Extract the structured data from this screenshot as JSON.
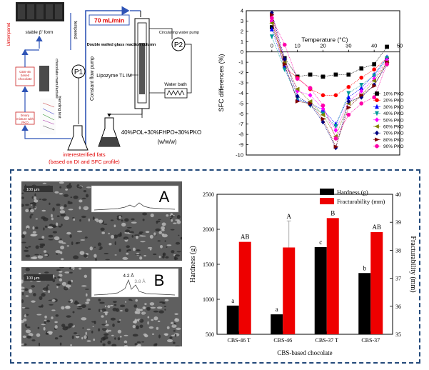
{
  "process": {
    "flow_rate": "70 mL/min",
    "tempered": "tempered",
    "untempered": "Untempered",
    "stable_form": "stable β’ form",
    "cbs_box": "CBS-46 based chocolate",
    "binary_box": "binary mixture with PKO",
    "chocolate_manufacture": "chocolate manufacture",
    "blending_test": "blending test",
    "p1": "P1",
    "p2": "P2",
    "constant_flow_pump": "Constant flow pump",
    "circulating_pump": "Circulating water pump",
    "column_label": "Double walled glass reaction column",
    "enzyme": "Lipozyme TL IM",
    "water_bath": "Water bath",
    "substrate": "40%POL+30%FHPO+30%PKO",
    "substrate_unit": "(w/w/w)",
    "product_line1": "interesterified fats",
    "product_line2": "(based on DI and SFC profile)"
  },
  "micrographs": [
    {
      "label": "A",
      "scale": "100 μm",
      "peak1": "",
      "peak2": ""
    },
    {
      "label": "B",
      "scale": "100 μm",
      "peak1": "4.2 Å",
      "peak2": "3.8 Å"
    }
  ],
  "chart_data": [
    {
      "type": "line",
      "title": "",
      "xlabel": "Temperature (°C)",
      "ylabel": "SFC differences (%)",
      "xlim": [
        -10,
        50
      ],
      "ylim": [
        -10,
        4
      ],
      "xticks": [
        0,
        10,
        20,
        30,
        40,
        50
      ],
      "yticks": [
        -10,
        -9,
        -8,
        -7,
        -6,
        -5,
        -4,
        -3,
        -2,
        -1,
        0,
        1,
        2,
        3,
        4
      ],
      "x": [
        0,
        5,
        10,
        15,
        20,
        25,
        30,
        35,
        40,
        45
      ],
      "legend_position": "right",
      "series": [
        {
          "name": "10% PKO",
          "color": "#000000",
          "marker": "square",
          "values": [
            2.4,
            -0.6,
            -2.4,
            -2.2,
            -2.4,
            -2.2,
            -2.2,
            -1.6,
            -1.2,
            0.5
          ]
        },
        {
          "name": "20% PKO",
          "color": "#ff0000",
          "marker": "circle",
          "values": [
            3.0,
            -1.5,
            -2.5,
            -3.6,
            -4.2,
            -4.2,
            -3.4,
            -2.5,
            -1.7,
            -0.6
          ]
        },
        {
          "name": "30% PKO",
          "color": "#0000ff",
          "marker": "triangle",
          "values": [
            2.2,
            -1.4,
            -4.6,
            -5.0,
            -5.6,
            -7.0,
            -4.4,
            -3.5,
            -2.2,
            -0.5
          ]
        },
        {
          "name": "40% PKO",
          "color": "#009999",
          "marker": "tri-down",
          "values": [
            1.5,
            -1.7,
            -4.5,
            -5.2,
            -6.0,
            -7.2,
            -4.0,
            -3.2,
            -2.3,
            -0.6
          ]
        },
        {
          "name": "50% PKO",
          "color": "#ff00ff",
          "marker": "diamond",
          "values": [
            3.0,
            -0.7,
            -3.8,
            -4.2,
            -5.5,
            -7.6,
            -4.8,
            -3.8,
            -2.6,
            -0.8
          ]
        },
        {
          "name": "60% PKO",
          "color": "#808000",
          "marker": "tri-left",
          "values": [
            2.8,
            -1.0,
            -3.6,
            -4.8,
            -6.1,
            -8.2,
            -5.0,
            -4.2,
            -2.8,
            -1.0
          ]
        },
        {
          "name": "70% PKO",
          "color": "#000080",
          "marker": "diamond",
          "values": [
            3.8,
            -0.7,
            -4.3,
            -5.1,
            -6.8,
            -9.3,
            -4.8,
            -4.4,
            -3.2,
            -1.2
          ]
        },
        {
          "name": "80% PKO",
          "color": "#800000",
          "marker": "tri-right",
          "values": [
            3.6,
            -1.2,
            -4.8,
            -5.0,
            -6.5,
            -9.2,
            -5.4,
            -4.2,
            -3.3,
            -1.0
          ]
        },
        {
          "name": "90% PKO",
          "color": "#ff00aa",
          "marker": "circle",
          "values": [
            3.3,
            0.7,
            -2.6,
            -3.5,
            -5.2,
            -8.4,
            -6.1,
            -5.0,
            -4.4,
            -1.2
          ]
        }
      ]
    },
    {
      "type": "bar",
      "title": "",
      "xlabel": "CBS-based chocolate",
      "ylabel": "Hardness (g)",
      "y2label": "Fracturability (mm)",
      "categories": [
        "CBS-46 T",
        "CBS-46",
        "CBS-37 T",
        "CBS-37"
      ],
      "ylim": [
        500,
        2500
      ],
      "y2lim": [
        35,
        40
      ],
      "yticks": [
        500,
        1000,
        1500,
        2000,
        2500
      ],
      "y2ticks": [
        35,
        36,
        37,
        38,
        39,
        40
      ],
      "legend_position": "top",
      "series": [
        {
          "name": "Hardness (g)",
          "axis": "left",
          "color": "#000000",
          "values": [
            910,
            785,
            1745,
            1375
          ],
          "errors": [
            0,
            0,
            0,
            0
          ],
          "labels": [
            "a",
            "a",
            "c",
            "b"
          ]
        },
        {
          "name": "Fracturability (mm)",
          "axis": "right",
          "color": "#ee0000",
          "values": [
            38.3,
            38.1,
            39.15,
            38.65
          ],
          "errors": [
            0,
            0.95,
            0,
            0
          ],
          "labels": [
            "AB",
            "A",
            "B",
            "AB"
          ]
        }
      ]
    }
  ]
}
